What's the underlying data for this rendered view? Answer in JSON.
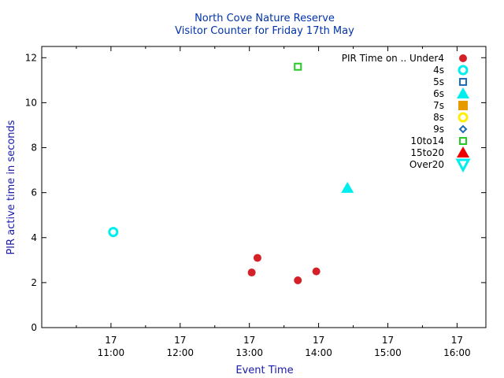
{
  "chart_data": {
    "type": "scatter",
    "title": "North Cove Nature Reserve",
    "subtitle": "Visitor Counter for Friday 17th May",
    "xlabel": "Event Time",
    "ylabel": "PIR active time in seconds",
    "title_color": "#0033aa",
    "axis_label_color": "#1a1aaa",
    "xlim_minutes": [
      600,
      985
    ],
    "ylim": [
      0,
      12.5
    ],
    "x_ticks": [
      {
        "minutes": 660,
        "day": "17",
        "time": "11:00"
      },
      {
        "minutes": 720,
        "day": "17",
        "time": "12:00"
      },
      {
        "minutes": 780,
        "day": "17",
        "time": "13:00"
      },
      {
        "minutes": 840,
        "day": "17",
        "time": "14:00"
      },
      {
        "minutes": 900,
        "day": "17",
        "time": "15:00"
      },
      {
        "minutes": 960,
        "day": "17",
        "time": "16:00"
      }
    ],
    "y_ticks": [
      0,
      2,
      4,
      6,
      8,
      10,
      12
    ],
    "grid": false,
    "legend_position": "top-right",
    "series": [
      {
        "name": "PIR Time on .. Under4",
        "marker": "circle-filled",
        "color": "#d62027",
        "points": [
          {
            "x": 782,
            "y": 2.45
          },
          {
            "x": 787,
            "y": 3.1
          },
          {
            "x": 822,
            "y": 2.1
          },
          {
            "x": 838,
            "y": 2.5
          }
        ]
      },
      {
        "name": "4s",
        "marker": "circle-open",
        "color": "#00eeee",
        "points": [
          {
            "x": 662,
            "y": 4.25
          }
        ]
      },
      {
        "name": "5s",
        "marker": "square-open",
        "color": "#1e6bb8",
        "points": []
      },
      {
        "name": "6s",
        "marker": "triangle-filled",
        "color": "#00eeee",
        "points": [
          {
            "x": 865,
            "y": 6.2
          }
        ]
      },
      {
        "name": "7s",
        "marker": "square-filled",
        "color": "#e69a00",
        "points": []
      },
      {
        "name": "8s",
        "marker": "circle-open",
        "color": "#ffee00",
        "points": []
      },
      {
        "name": "9s",
        "marker": "diamond-open",
        "color": "#1e6bb8",
        "points": []
      },
      {
        "name": "10to14",
        "marker": "square-open",
        "color": "#22cc22",
        "points": [
          {
            "x": 822,
            "y": 11.6
          }
        ]
      },
      {
        "name": "15to20",
        "marker": "triangle-filled",
        "color": "#ee0000",
        "points": []
      },
      {
        "name": "Over20",
        "marker": "triangle-down-open",
        "color": "#00eeee",
        "points": []
      }
    ]
  }
}
